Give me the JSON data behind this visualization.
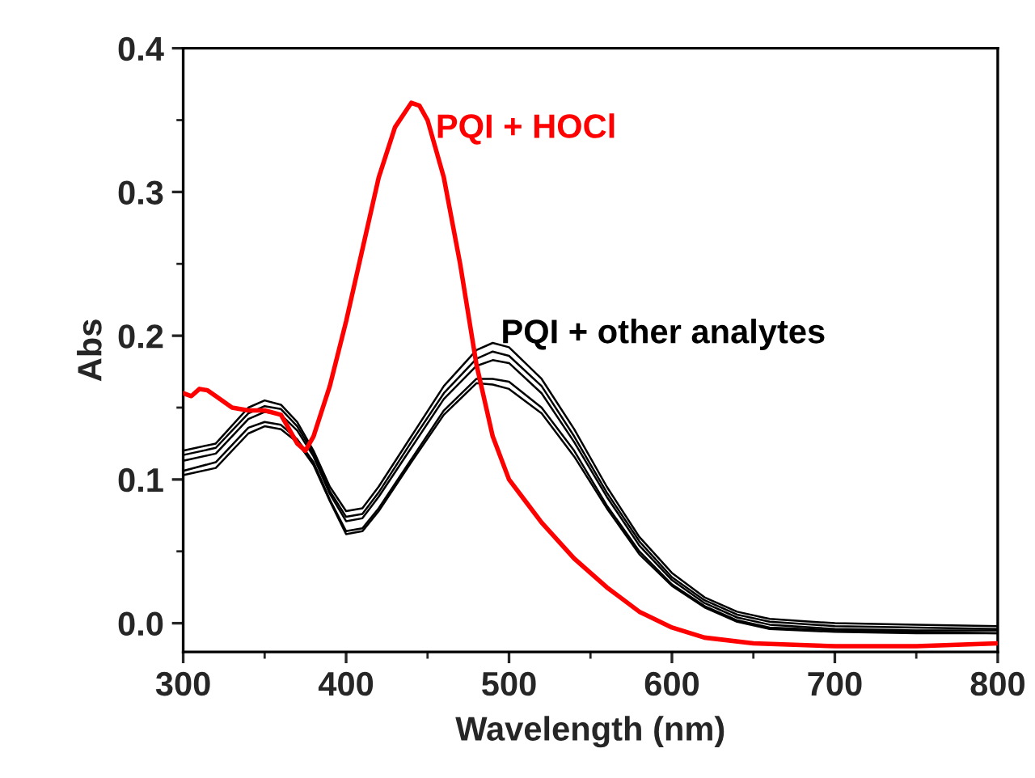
{
  "chart_data": {
    "type": "line",
    "xlabel": "Wavelength (nm)",
    "ylabel": "Abs",
    "x": [
      300,
      320,
      340,
      350,
      360,
      370,
      380,
      390,
      400,
      410,
      420,
      440,
      460,
      480,
      490,
      500,
      520,
      540,
      560,
      580,
      600,
      620,
      640,
      660,
      700,
      750,
      800
    ],
    "xlim": [
      300,
      800
    ],
    "xticks": [
      300,
      400,
      500,
      600,
      700,
      800
    ],
    "ylim": [
      -0.02,
      0.4
    ],
    "yticks": [
      {
        "value": 0.0,
        "label": "0.0"
      },
      0.1,
      0.2,
      0.3,
      0.4
    ],
    "grid": false,
    "legend": false,
    "marker": "none",
    "line_style": "solid",
    "series": [
      {
        "name": "PQI + HOCl",
        "color": "#ff0000",
        "x": [
          300,
          305,
          310,
          315,
          320,
          330,
          340,
          350,
          360,
          370,
          375,
          380,
          390,
          400,
          410,
          420,
          430,
          440,
          445,
          450,
          460,
          470,
          480,
          490,
          500,
          510,
          520,
          540,
          560,
          580,
          600,
          620,
          650,
          700,
          750,
          800
        ],
        "values": [
          0.16,
          0.158,
          0.163,
          0.162,
          0.158,
          0.15,
          0.148,
          0.148,
          0.145,
          0.125,
          0.12,
          0.13,
          0.165,
          0.21,
          0.26,
          0.31,
          0.345,
          0.362,
          0.36,
          0.35,
          0.31,
          0.25,
          0.18,
          0.13,
          0.1,
          0.085,
          0.07,
          0.045,
          0.025,
          0.008,
          -0.003,
          -0.01,
          -0.014,
          -0.016,
          -0.016,
          -0.014
        ]
      },
      {
        "name": "PQI + other analytes",
        "color": "#000000",
        "values": [
          0.12,
          0.125,
          0.15,
          0.155,
          0.152,
          0.14,
          0.12,
          0.095,
          0.078,
          0.08,
          0.095,
          0.13,
          0.165,
          0.19,
          0.195,
          0.192,
          0.17,
          0.135,
          0.095,
          0.06,
          0.035,
          0.018,
          0.008,
          0.003,
          0.0,
          -0.001,
          -0.002
        ]
      },
      {
        "color": "#000000",
        "values": [
          0.117,
          0.122,
          0.146,
          0.151,
          0.149,
          0.137,
          0.118,
          0.092,
          0.074,
          0.076,
          0.091,
          0.126,
          0.16,
          0.184,
          0.189,
          0.186,
          0.165,
          0.13,
          0.091,
          0.057,
          0.032,
          0.016,
          0.006,
          0.001,
          -0.002,
          -0.003,
          -0.004
        ]
      },
      {
        "color": "#000000",
        "values": [
          0.113,
          0.118,
          0.142,
          0.147,
          0.145,
          0.134,
          0.116,
          0.09,
          0.071,
          0.073,
          0.088,
          0.122,
          0.156,
          0.179,
          0.183,
          0.181,
          0.16,
          0.126,
          0.088,
          0.054,
          0.03,
          0.014,
          0.004,
          -0.001,
          -0.004,
          -0.005,
          -0.005
        ]
      },
      {
        "color": "#000000",
        "values": [
          0.106,
          0.112,
          0.136,
          0.14,
          0.138,
          0.128,
          0.112,
          0.086,
          0.064,
          0.066,
          0.08,
          0.114,
          0.148,
          0.17,
          0.17,
          0.168,
          0.15,
          0.12,
          0.082,
          0.05,
          0.027,
          0.012,
          0.002,
          -0.003,
          -0.005,
          -0.006,
          -0.007
        ]
      },
      {
        "color": "#000000",
        "values": [
          0.103,
          0.108,
          0.132,
          0.137,
          0.135,
          0.126,
          0.11,
          0.085,
          0.062,
          0.064,
          0.078,
          0.112,
          0.145,
          0.167,
          0.166,
          0.163,
          0.146,
          0.116,
          0.08,
          0.048,
          0.026,
          0.011,
          0.001,
          -0.004,
          -0.006,
          -0.007,
          -0.007
        ]
      }
    ]
  }
}
